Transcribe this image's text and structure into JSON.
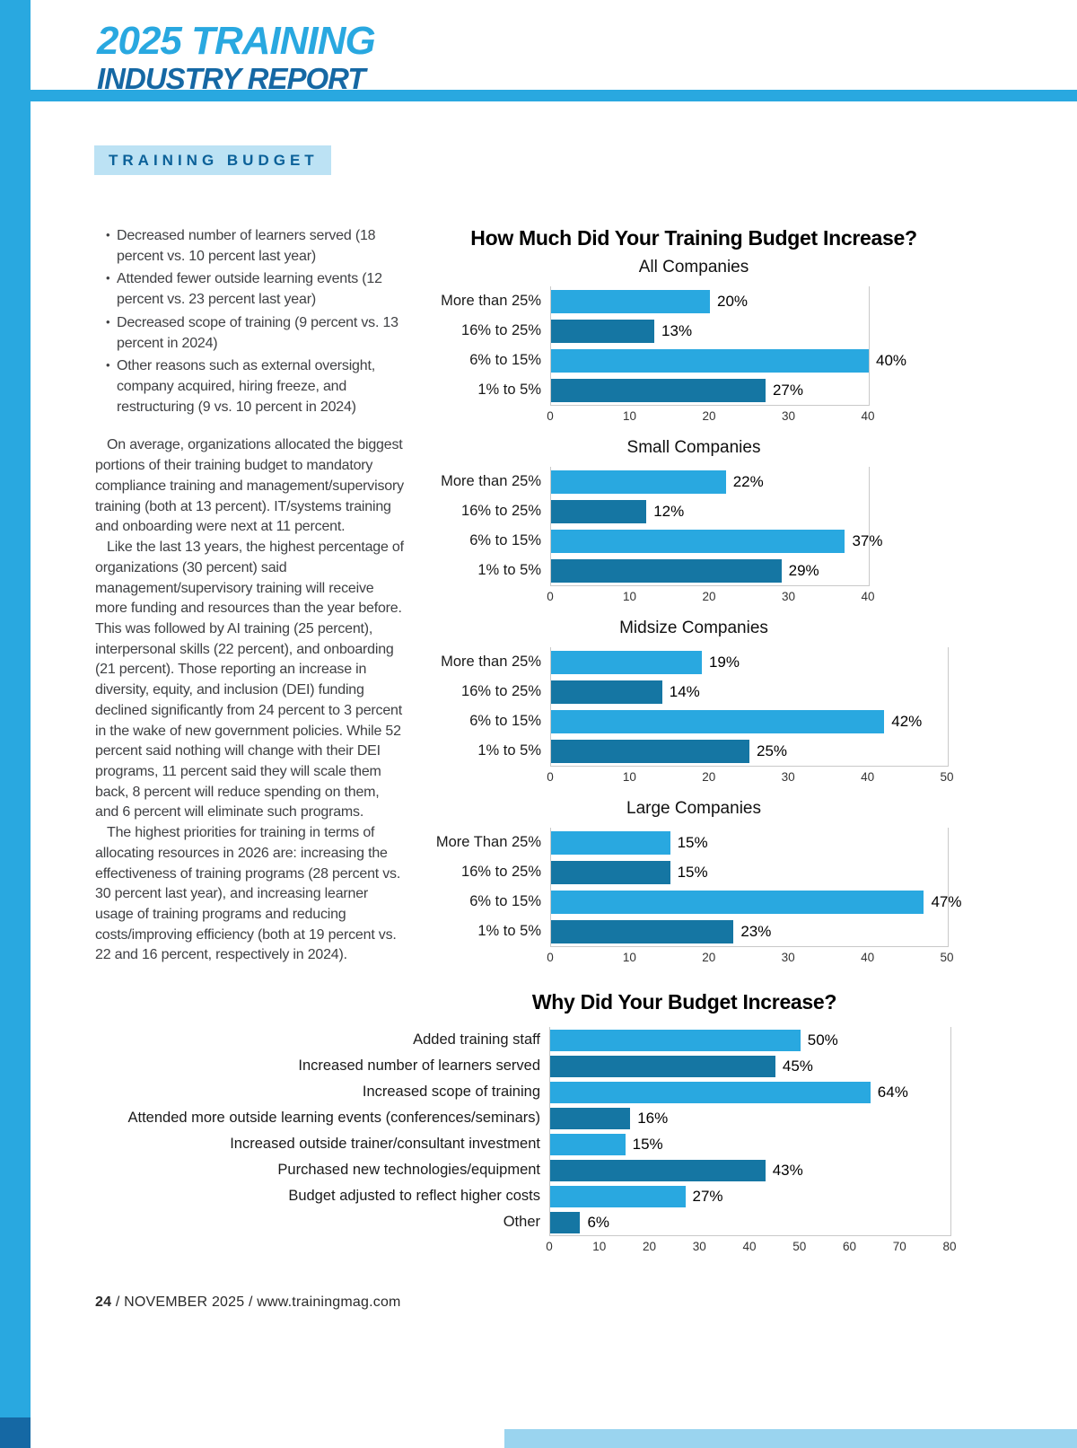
{
  "header": {
    "line1": "2025 TRAINING",
    "line2": "INDUSTRY REPORT"
  },
  "section_label": "TRAINING BUDGET",
  "article": {
    "bullets": [
      "Decreased number of learners served (18 percent vs. 10 percent last year)",
      "Attended fewer outside learning events (12 percent vs. 23 percent last year)",
      "Decreased scope of training (9 percent vs. 13 percent in 2024)",
      "Other reasons such as external oversight, company acquired, hiring freeze, and restructuring (9 vs. 10 percent in 2024)"
    ],
    "paragraphs": [
      "On average, organizations allocated the biggest portions of their training budget to mandatory compliance training and management/supervisory training (both at 13 percent). IT/systems training and onboarding were next at 11 percent.",
      "Like the last 13 years, the highest percentage of organizations (30 percent) said management/supervisory training will receive more funding and resources than the year before. This was followed by AI training (25 percent), interpersonal skills (22 percent), and onboarding (21 percent). Those reporting an increase in diversity, equity, and inclusion (DEI) funding declined significantly from 24 percent to 3 percent in the wake of new government policies. While 52 percent said nothing will change with their DEI programs, 11 percent said they will scale them back, 8 percent will reduce spending on them, and 6 percent will eliminate such programs.",
      "The highest priorities for training in terms of allocating resources in 2026 are: increasing the effectiveness of training programs (28 percent vs. 30 percent last year), and increasing learner usage of training programs and reducing costs/improving efficiency (both at 19 percent vs. 22 and 16 percent, respectively in 2024)."
    ]
  },
  "colors": {
    "accent": "#29A8E0",
    "accent_dark": "#1568A4",
    "bar_light": "#29A8E0",
    "bar_dark": "#1576A3",
    "chip_bg": "#BCE2F4",
    "chip_text": "#0B6199"
  },
  "chart_data": [
    {
      "type": "bar",
      "orientation": "horizontal",
      "title": "How Much Did Your Training Budget Increase?",
      "subtitle": "All Companies",
      "categories": [
        "More than 25%",
        "16% to 25%",
        "6% to 15%",
        "1% to 5%"
      ],
      "values": [
        20,
        13,
        40,
        27
      ],
      "value_labels": [
        "20%",
        "13%",
        "40%",
        "27%"
      ],
      "xlim": [
        0,
        40
      ],
      "ticks": [
        0,
        10,
        20,
        30,
        40
      ],
      "grid": false,
      "legend": "none"
    },
    {
      "type": "bar",
      "orientation": "horizontal",
      "title": "How Much Did Your Training Budget Increase?",
      "subtitle": "Small Companies",
      "categories": [
        "More than 25%",
        "16% to 25%",
        "6% to 15%",
        "1% to 5%"
      ],
      "values": [
        22,
        12,
        37,
        29
      ],
      "value_labels": [
        "22%",
        "12%",
        "37%",
        "29%"
      ],
      "xlim": [
        0,
        40
      ],
      "ticks": [
        0,
        10,
        20,
        30,
        40
      ],
      "grid": false,
      "legend": "none"
    },
    {
      "type": "bar",
      "orientation": "horizontal",
      "title": "How Much Did Your Training Budget Increase?",
      "subtitle": "Midsize Companies",
      "categories": [
        "More than 25%",
        "16% to 25%",
        "6% to 15%",
        "1% to 5%"
      ],
      "values": [
        19,
        14,
        42,
        25
      ],
      "value_labels": [
        "19%",
        "14%",
        "42%",
        "25%"
      ],
      "xlim": [
        0,
        50
      ],
      "ticks": [
        0,
        10,
        20,
        30,
        40,
        50
      ],
      "grid": false,
      "legend": "none"
    },
    {
      "type": "bar",
      "orientation": "horizontal",
      "title": "How Much Did Your Training Budget Increase?",
      "subtitle": "Large Companies",
      "categories": [
        "More Than 25%",
        "16% to 25%",
        "6% to 15%",
        "1% to 5%"
      ],
      "values": [
        15,
        15,
        47,
        23
      ],
      "value_labels": [
        "15%",
        "15%",
        "47%",
        "23%"
      ],
      "xlim": [
        0,
        50
      ],
      "ticks": [
        0,
        10,
        20,
        30,
        40,
        50
      ],
      "grid": false,
      "legend": "none"
    },
    {
      "type": "bar",
      "orientation": "horizontal",
      "title": "Why Did Your Budget Increase?",
      "subtitle": "",
      "categories": [
        "Added training staff",
        "Increased number of learners served",
        "Increased scope of training",
        "Attended more outside learning events (conferences/seminars)",
        "Increased outside trainer/consultant investment",
        "Purchased new technologies/equipment",
        "Budget adjusted to reflect higher costs",
        "Other"
      ],
      "values": [
        50,
        45,
        64,
        16,
        15,
        43,
        27,
        6
      ],
      "value_labels": [
        "50%",
        "45%",
        "64%",
        "16%",
        "15%",
        "43%",
        "27%",
        "6%"
      ],
      "xlim": [
        0,
        80
      ],
      "ticks": [
        0,
        10,
        20,
        30,
        40,
        50,
        60,
        70,
        80
      ],
      "grid": false,
      "legend": "none"
    }
  ],
  "footer": {
    "page_number": "24",
    "text": " / NOVEMBER 2025 / www.trainingmag.com"
  }
}
